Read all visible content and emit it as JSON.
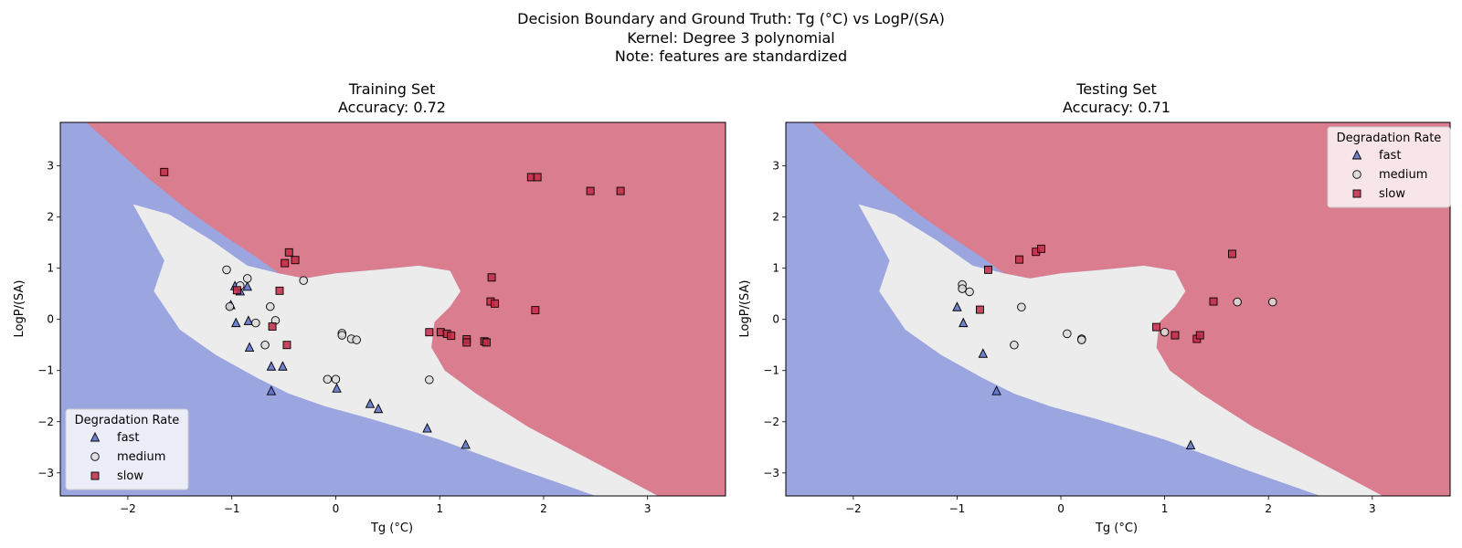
{
  "suptitle": {
    "line1": "Decision Boundary and Ground Truth: Tg (°C) vs LogP/(SA)",
    "line2": "Kernel: Degree 3 polynomial",
    "line3": "Note: features are standardized"
  },
  "colors": {
    "fast_region": "#9ba5e0",
    "medium_region": "#ececec",
    "slow_region": "#d97d8f",
    "fast_marker": "#5b6fc8",
    "medium_marker": "#dcdcdc",
    "slow_marker": "#c22a45"
  },
  "chart_data": [
    {
      "type": "scatter",
      "title_line1": "Training Set",
      "title_line2": "Accuracy: 0.72",
      "xlabel": "Tg (°C)",
      "ylabel": "LogP/(SA)",
      "xlim": [
        -2.65,
        3.75
      ],
      "ylim": [
        -3.45,
        3.85
      ],
      "xticks": [
        -2,
        -1,
        0,
        1,
        2,
        3
      ],
      "yticks": [
        -3,
        -2,
        -1,
        0,
        1,
        2,
        3
      ],
      "legend": {
        "title": "Degradation Rate",
        "position": "lower-left",
        "labels": [
          "fast",
          "medium",
          "slow"
        ]
      },
      "series": [
        {
          "name": "fast",
          "marker": "triangle",
          "points": [
            [
              -0.97,
              0.65
            ],
            [
              -0.85,
              0.64
            ],
            [
              -0.92,
              0.55
            ],
            [
              -0.96,
              -0.07
            ],
            [
              -0.84,
              -0.03
            ],
            [
              -0.83,
              -0.55
            ],
            [
              -0.62,
              -0.92
            ],
            [
              -0.51,
              -0.92
            ],
            [
              -0.62,
              -1.4
            ],
            [
              0.01,
              -1.35
            ],
            [
              0.33,
              -1.65
            ],
            [
              0.41,
              -1.75
            ],
            [
              0.88,
              -2.13
            ],
            [
              1.25,
              -2.45
            ],
            [
              -1.01,
              0.28
            ]
          ]
        },
        {
          "name": "medium",
          "marker": "circle",
          "points": [
            [
              -1.05,
              0.97
            ],
            [
              -1.02,
              0.25
            ],
            [
              -0.92,
              0.66
            ],
            [
              -0.85,
              0.8
            ],
            [
              -0.77,
              -0.07
            ],
            [
              -0.68,
              -0.5
            ],
            [
              -0.63,
              0.25
            ],
            [
              -0.58,
              -0.02
            ],
            [
              -0.31,
              0.76
            ],
            [
              -0.08,
              -1.17
            ],
            [
              0.0,
              -1.17
            ],
            [
              0.06,
              -0.27
            ],
            [
              0.06,
              -0.31
            ],
            [
              0.15,
              -0.38
            ],
            [
              0.2,
              -0.4
            ],
            [
              0.9,
              -1.18
            ]
          ]
        },
        {
          "name": "slow",
          "marker": "square",
          "points": [
            [
              -1.65,
              2.88
            ],
            [
              -0.95,
              0.57
            ],
            [
              -0.61,
              -0.14
            ],
            [
              -0.54,
              0.56
            ],
            [
              -0.49,
              1.1
            ],
            [
              -0.45,
              1.31
            ],
            [
              -0.39,
              1.16
            ],
            [
              -0.47,
              -0.5
            ],
            [
              0.9,
              -0.25
            ],
            [
              1.01,
              -0.25
            ],
            [
              1.07,
              -0.28
            ],
            [
              1.11,
              -0.32
            ],
            [
              1.26,
              -0.39
            ],
            [
              1.26,
              -0.45
            ],
            [
              1.43,
              -0.43
            ],
            [
              1.45,
              -0.45
            ],
            [
              1.49,
              0.35
            ],
            [
              1.5,
              0.82
            ],
            [
              1.53,
              0.31
            ],
            [
              1.88,
              2.78
            ],
            [
              1.94,
              2.78
            ],
            [
              1.92,
              0.18
            ],
            [
              2.45,
              2.51
            ],
            [
              2.74,
              2.51
            ]
          ]
        }
      ]
    },
    {
      "type": "scatter",
      "title_line1": "Testing Set",
      "title_line2": "Accuracy: 0.71",
      "xlabel": "Tg (°C)",
      "ylabel": "LogP/(SA)",
      "xlim": [
        -2.65,
        3.75
      ],
      "ylim": [
        -3.45,
        3.85
      ],
      "xticks": [
        -2,
        -1,
        0,
        1,
        2,
        3
      ],
      "yticks": [
        -3,
        -2,
        -1,
        0,
        1,
        2,
        3
      ],
      "legend": {
        "title": "Degradation Rate",
        "position": "upper-right",
        "labels": [
          "fast",
          "medium",
          "slow"
        ]
      },
      "series": [
        {
          "name": "fast",
          "marker": "triangle",
          "points": [
            [
              -1.0,
              0.24
            ],
            [
              -0.94,
              -0.07
            ],
            [
              -0.75,
              -0.67
            ],
            [
              -0.62,
              -1.4
            ],
            [
              1.25,
              -2.46
            ]
          ]
        },
        {
          "name": "medium",
          "marker": "circle",
          "points": [
            [
              -0.95,
              0.68
            ],
            [
              -0.95,
              0.6
            ],
            [
              -0.88,
              0.54
            ],
            [
              -0.38,
              0.24
            ],
            [
              -0.45,
              -0.5
            ],
            [
              0.06,
              -0.28
            ],
            [
              0.2,
              -0.38
            ],
            [
              0.2,
              -0.4
            ],
            [
              1.0,
              -0.25
            ],
            [
              1.7,
              0.34
            ],
            [
              2.04,
              0.34
            ]
          ]
        },
        {
          "name": "slow",
          "marker": "square",
          "points": [
            [
              -0.7,
              0.97
            ],
            [
              -0.78,
              0.19
            ],
            [
              -0.4,
              1.17
            ],
            [
              -0.24,
              1.32
            ],
            [
              -0.19,
              1.38
            ],
            [
              0.92,
              -0.15
            ],
            [
              1.1,
              -0.31
            ],
            [
              1.31,
              -0.38
            ],
            [
              1.34,
              -0.31
            ],
            [
              1.47,
              0.35
            ],
            [
              1.65,
              1.28
            ]
          ]
        }
      ]
    }
  ]
}
